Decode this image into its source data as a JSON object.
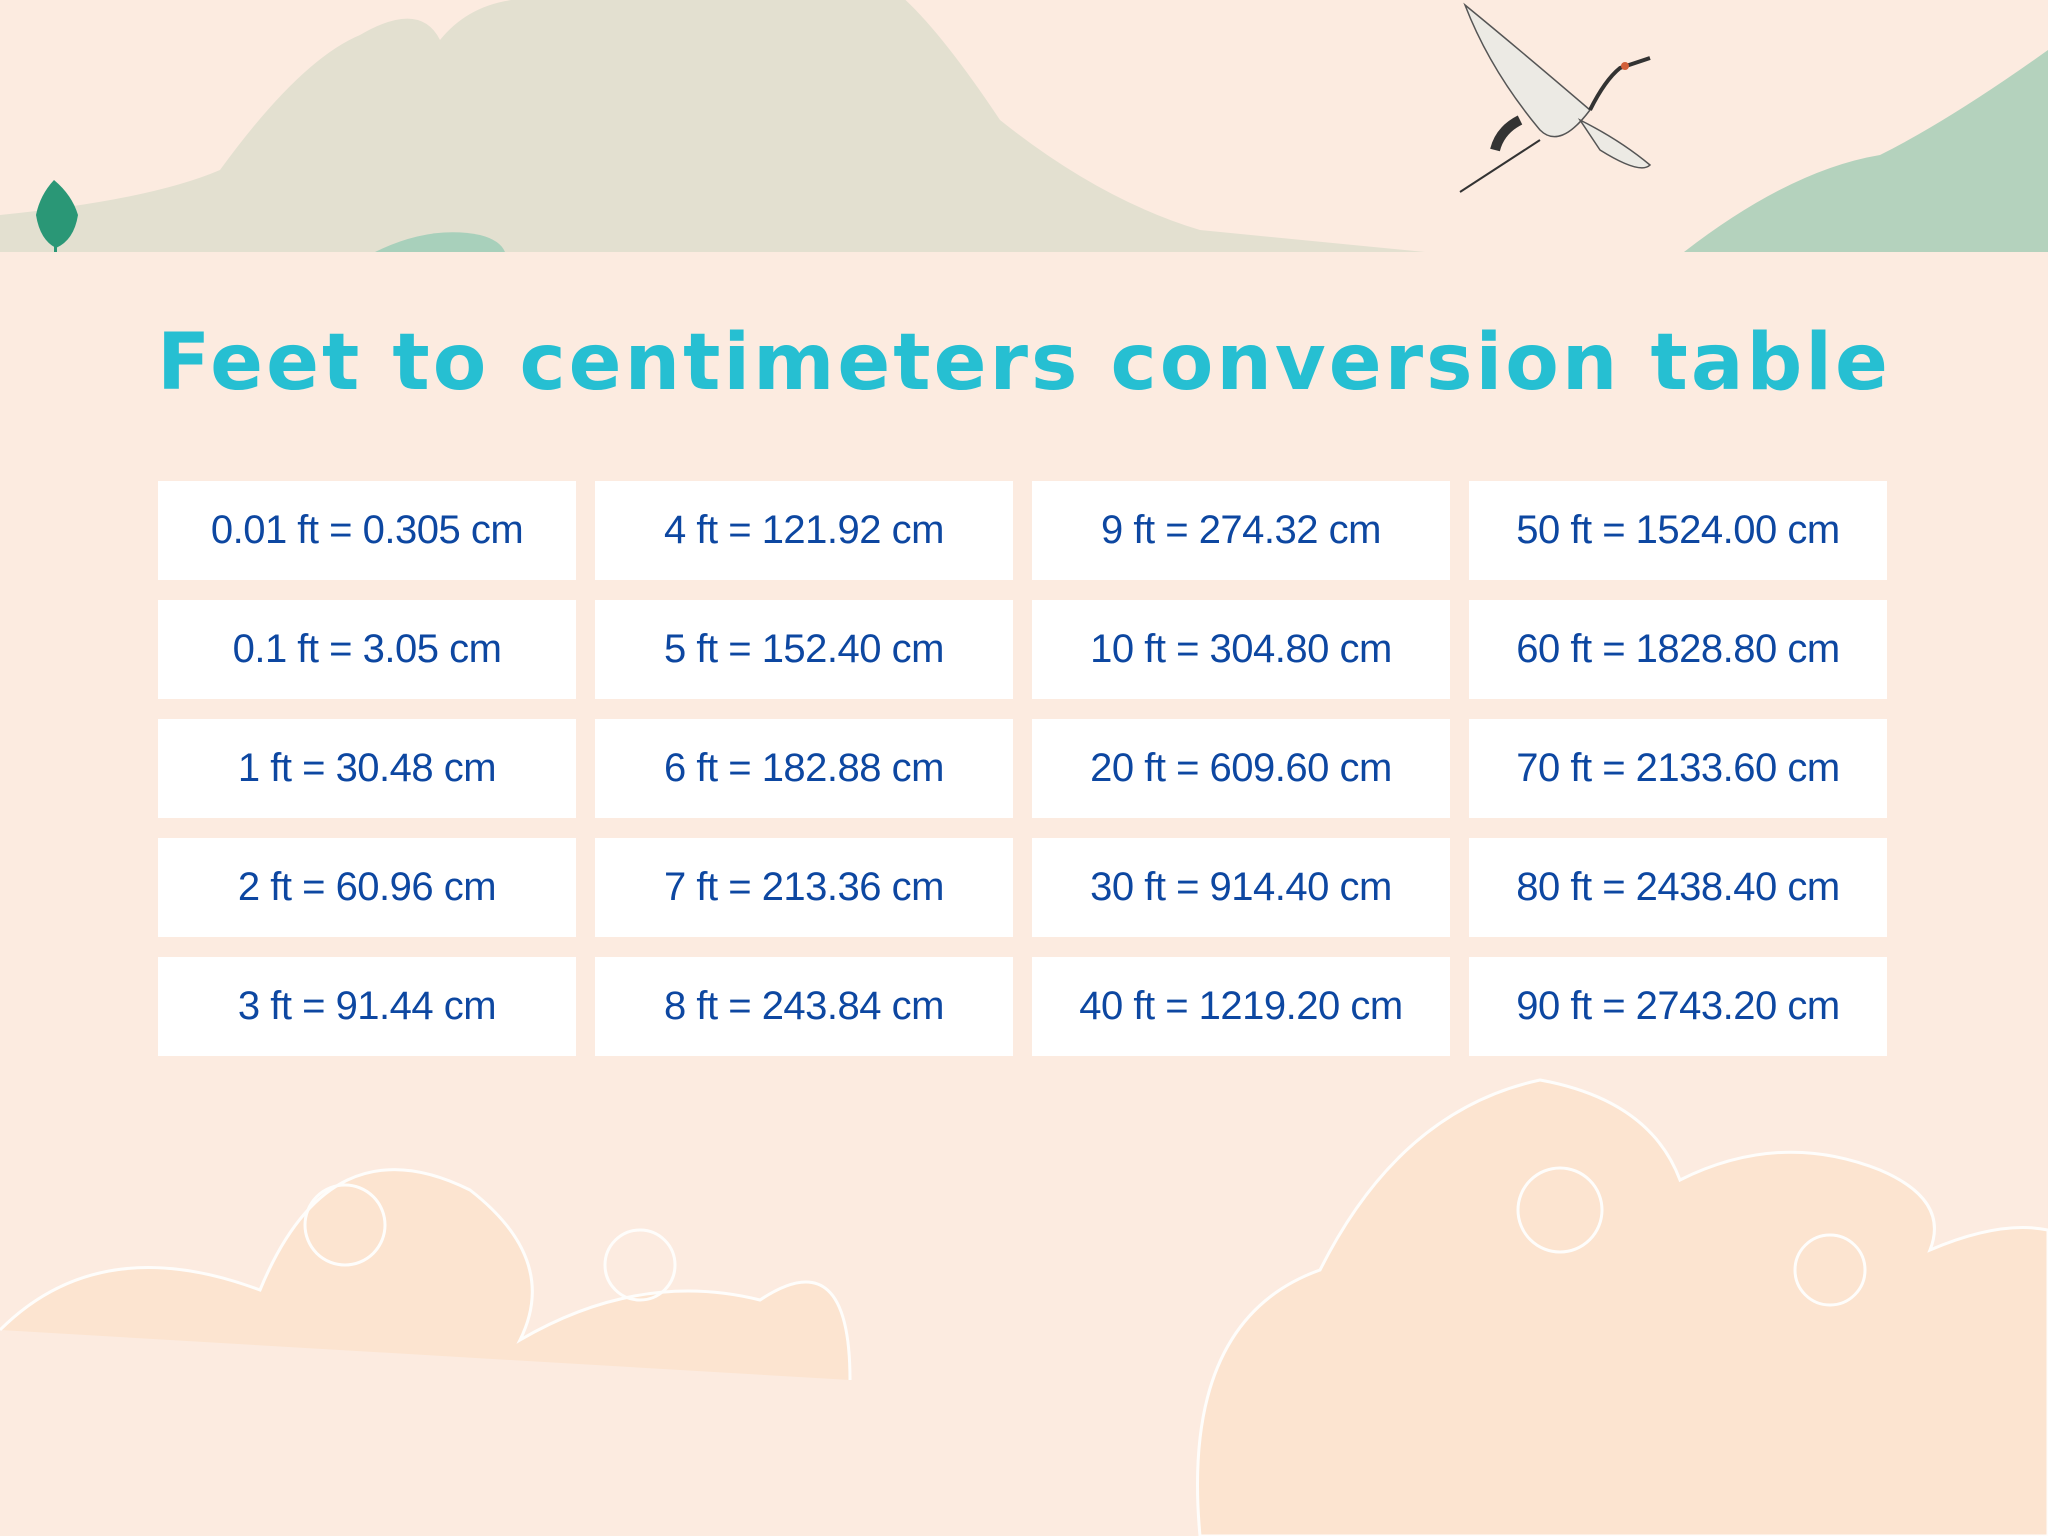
{
  "title": "Feet to centimeters conversion table",
  "colors": {
    "background": "#fcebe0",
    "title": "#26bfd2",
    "cell_text": "#0d47a1",
    "cell_bg": "#ffffff"
  },
  "icons": [
    "mountains-illustration",
    "crane-illustration",
    "tree-icon",
    "cloud-pattern"
  ],
  "cells": [
    "0.01 ft = 0.305 cm",
    "4 ft = 121.92 cm",
    "9 ft = 274.32 cm",
    "50 ft = 1524.00 cm",
    "0.1 ft = 3.05 cm",
    "5 ft = 152.40 cm",
    "10 ft = 304.80 cm",
    "60 ft = 1828.80 cm",
    "1 ft = 30.48 cm",
    "6 ft = 182.88 cm",
    "20 ft = 609.60 cm",
    "70 ft = 2133.60 cm",
    "2 ft = 60.96 cm",
    "7 ft = 213.36 cm",
    "30 ft = 914.40 cm",
    "80 ft = 2438.40 cm",
    "3 ft = 91.44 cm",
    "8 ft = 243.84 cm",
    "40 ft = 1219.20 cm",
    "90 ft = 2743.20 cm"
  ]
}
